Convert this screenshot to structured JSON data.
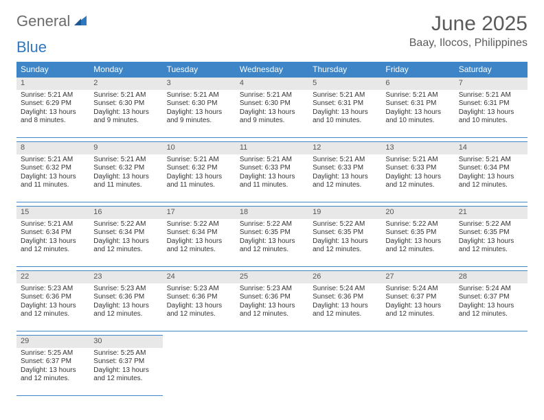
{
  "logo": {
    "general": "General",
    "blue": "Blue"
  },
  "title": "June 2025",
  "location": "Baay, Ilocos, Philippines",
  "colors": {
    "header_bg": "#3d85c6",
    "header_text": "#ffffff",
    "daynum_bg": "#e8e8e8",
    "border": "#3d85c6",
    "page_bg": "#ffffff",
    "text": "#333333",
    "title_text": "#5a5a5a",
    "logo_gray": "#6b6b6b",
    "logo_blue": "#2f78bd"
  },
  "typography": {
    "title_fontsize": 30,
    "location_fontsize": 16,
    "dayheader_fontsize": 12,
    "daynum_fontsize": 11,
    "body_fontsize": 10
  },
  "day_headers": [
    "Sunday",
    "Monday",
    "Tuesday",
    "Wednesday",
    "Thursday",
    "Friday",
    "Saturday"
  ],
  "weeks": [
    [
      {
        "n": "1",
        "sunrise": "Sunrise: 5:21 AM",
        "sunset": "Sunset: 6:29 PM",
        "daylight": "Daylight: 13 hours and 8 minutes."
      },
      {
        "n": "2",
        "sunrise": "Sunrise: 5:21 AM",
        "sunset": "Sunset: 6:30 PM",
        "daylight": "Daylight: 13 hours and 9 minutes."
      },
      {
        "n": "3",
        "sunrise": "Sunrise: 5:21 AM",
        "sunset": "Sunset: 6:30 PM",
        "daylight": "Daylight: 13 hours and 9 minutes."
      },
      {
        "n": "4",
        "sunrise": "Sunrise: 5:21 AM",
        "sunset": "Sunset: 6:30 PM",
        "daylight": "Daylight: 13 hours and 9 minutes."
      },
      {
        "n": "5",
        "sunrise": "Sunrise: 5:21 AM",
        "sunset": "Sunset: 6:31 PM",
        "daylight": "Daylight: 13 hours and 10 minutes."
      },
      {
        "n": "6",
        "sunrise": "Sunrise: 5:21 AM",
        "sunset": "Sunset: 6:31 PM",
        "daylight": "Daylight: 13 hours and 10 minutes."
      },
      {
        "n": "7",
        "sunrise": "Sunrise: 5:21 AM",
        "sunset": "Sunset: 6:31 PM",
        "daylight": "Daylight: 13 hours and 10 minutes."
      }
    ],
    [
      {
        "n": "8",
        "sunrise": "Sunrise: 5:21 AM",
        "sunset": "Sunset: 6:32 PM",
        "daylight": "Daylight: 13 hours and 11 minutes."
      },
      {
        "n": "9",
        "sunrise": "Sunrise: 5:21 AM",
        "sunset": "Sunset: 6:32 PM",
        "daylight": "Daylight: 13 hours and 11 minutes."
      },
      {
        "n": "10",
        "sunrise": "Sunrise: 5:21 AM",
        "sunset": "Sunset: 6:32 PM",
        "daylight": "Daylight: 13 hours and 11 minutes."
      },
      {
        "n": "11",
        "sunrise": "Sunrise: 5:21 AM",
        "sunset": "Sunset: 6:33 PM",
        "daylight": "Daylight: 13 hours and 11 minutes."
      },
      {
        "n": "12",
        "sunrise": "Sunrise: 5:21 AM",
        "sunset": "Sunset: 6:33 PM",
        "daylight": "Daylight: 13 hours and 12 minutes."
      },
      {
        "n": "13",
        "sunrise": "Sunrise: 5:21 AM",
        "sunset": "Sunset: 6:33 PM",
        "daylight": "Daylight: 13 hours and 12 minutes."
      },
      {
        "n": "14",
        "sunrise": "Sunrise: 5:21 AM",
        "sunset": "Sunset: 6:34 PM",
        "daylight": "Daylight: 13 hours and 12 minutes."
      }
    ],
    [
      {
        "n": "15",
        "sunrise": "Sunrise: 5:21 AM",
        "sunset": "Sunset: 6:34 PM",
        "daylight": "Daylight: 13 hours and 12 minutes."
      },
      {
        "n": "16",
        "sunrise": "Sunrise: 5:22 AM",
        "sunset": "Sunset: 6:34 PM",
        "daylight": "Daylight: 13 hours and 12 minutes."
      },
      {
        "n": "17",
        "sunrise": "Sunrise: 5:22 AM",
        "sunset": "Sunset: 6:34 PM",
        "daylight": "Daylight: 13 hours and 12 minutes."
      },
      {
        "n": "18",
        "sunrise": "Sunrise: 5:22 AM",
        "sunset": "Sunset: 6:35 PM",
        "daylight": "Daylight: 13 hours and 12 minutes."
      },
      {
        "n": "19",
        "sunrise": "Sunrise: 5:22 AM",
        "sunset": "Sunset: 6:35 PM",
        "daylight": "Daylight: 13 hours and 12 minutes."
      },
      {
        "n": "20",
        "sunrise": "Sunrise: 5:22 AM",
        "sunset": "Sunset: 6:35 PM",
        "daylight": "Daylight: 13 hours and 12 minutes."
      },
      {
        "n": "21",
        "sunrise": "Sunrise: 5:22 AM",
        "sunset": "Sunset: 6:35 PM",
        "daylight": "Daylight: 13 hours and 12 minutes."
      }
    ],
    [
      {
        "n": "22",
        "sunrise": "Sunrise: 5:23 AM",
        "sunset": "Sunset: 6:36 PM",
        "daylight": "Daylight: 13 hours and 12 minutes."
      },
      {
        "n": "23",
        "sunrise": "Sunrise: 5:23 AM",
        "sunset": "Sunset: 6:36 PM",
        "daylight": "Daylight: 13 hours and 12 minutes."
      },
      {
        "n": "24",
        "sunrise": "Sunrise: 5:23 AM",
        "sunset": "Sunset: 6:36 PM",
        "daylight": "Daylight: 13 hours and 12 minutes."
      },
      {
        "n": "25",
        "sunrise": "Sunrise: 5:23 AM",
        "sunset": "Sunset: 6:36 PM",
        "daylight": "Daylight: 13 hours and 12 minutes."
      },
      {
        "n": "26",
        "sunrise": "Sunrise: 5:24 AM",
        "sunset": "Sunset: 6:36 PM",
        "daylight": "Daylight: 13 hours and 12 minutes."
      },
      {
        "n": "27",
        "sunrise": "Sunrise: 5:24 AM",
        "sunset": "Sunset: 6:37 PM",
        "daylight": "Daylight: 13 hours and 12 minutes."
      },
      {
        "n": "28",
        "sunrise": "Sunrise: 5:24 AM",
        "sunset": "Sunset: 6:37 PM",
        "daylight": "Daylight: 13 hours and 12 minutes."
      }
    ],
    [
      {
        "n": "29",
        "sunrise": "Sunrise: 5:25 AM",
        "sunset": "Sunset: 6:37 PM",
        "daylight": "Daylight: 13 hours and 12 minutes."
      },
      {
        "n": "30",
        "sunrise": "Sunrise: 5:25 AM",
        "sunset": "Sunset: 6:37 PM",
        "daylight": "Daylight: 13 hours and 12 minutes."
      },
      null,
      null,
      null,
      null,
      null
    ]
  ]
}
